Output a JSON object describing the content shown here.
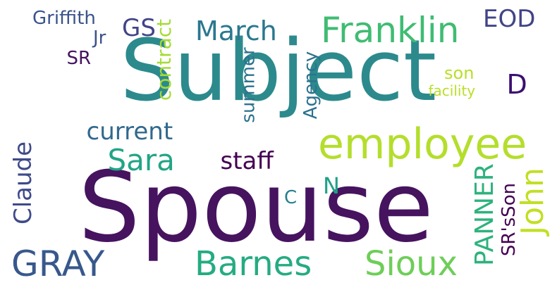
{
  "words": [
    {
      "id": "subject",
      "text": "Subject",
      "color": "#2c8a8d"
    },
    {
      "id": "spouse",
      "text": "Spouse",
      "color": "#46135f"
    },
    {
      "id": "employee",
      "text": "employee",
      "color": "#b4de2c"
    },
    {
      "id": "franklin",
      "text": "Franklin",
      "color": "#3fbc73"
    },
    {
      "id": "griffith",
      "text": "Griffith",
      "color": "#3a538b"
    },
    {
      "id": "gs",
      "text": "GS",
      "color": "#414487"
    },
    {
      "id": "march",
      "text": "March",
      "color": "#2a788e"
    },
    {
      "id": "eod",
      "text": "EOD",
      "color": "#414487"
    },
    {
      "id": "jr",
      "text": "Jr",
      "color": "#3b528b"
    },
    {
      "id": "sr",
      "text": "SR",
      "color": "#46135f"
    },
    {
      "id": "contract",
      "text": "contract",
      "color": "#a5db36"
    },
    {
      "id": "summer",
      "text": "summer",
      "color": "#2c728e"
    },
    {
      "id": "agency",
      "text": "Agency",
      "color": "#2c728e"
    },
    {
      "id": "son",
      "text": "son",
      "color": "#b8de29"
    },
    {
      "id": "facility",
      "text": "facility",
      "color": "#bade28"
    },
    {
      "id": "d",
      "text": "D",
      "color": "#3b0f70"
    },
    {
      "id": "current",
      "text": "current",
      "color": "#31688e"
    },
    {
      "id": "sara",
      "text": "Sara",
      "color": "#21a585"
    },
    {
      "id": "staff",
      "text": "staff",
      "color": "#440154"
    },
    {
      "id": "claude",
      "text": "Claude",
      "color": "#3e4a89"
    },
    {
      "id": "n",
      "text": "N",
      "color": "#1fa187"
    },
    {
      "id": "c",
      "text": "C",
      "color": "#277f8e"
    },
    {
      "id": "panner",
      "text": "PANNER",
      "color": "#2db27d"
    },
    {
      "id": "john",
      "text": "John",
      "color": "#c2df23"
    },
    {
      "id": "srsson",
      "text": "SR'sSon",
      "color": "#440154"
    },
    {
      "id": "gray",
      "text": "GRAY",
      "color": "#38588c"
    },
    {
      "id": "barnes",
      "text": "Barnes",
      "color": "#25ab82"
    },
    {
      "id": "sioux",
      "text": "Sioux",
      "color": "#6ece58"
    }
  ]
}
